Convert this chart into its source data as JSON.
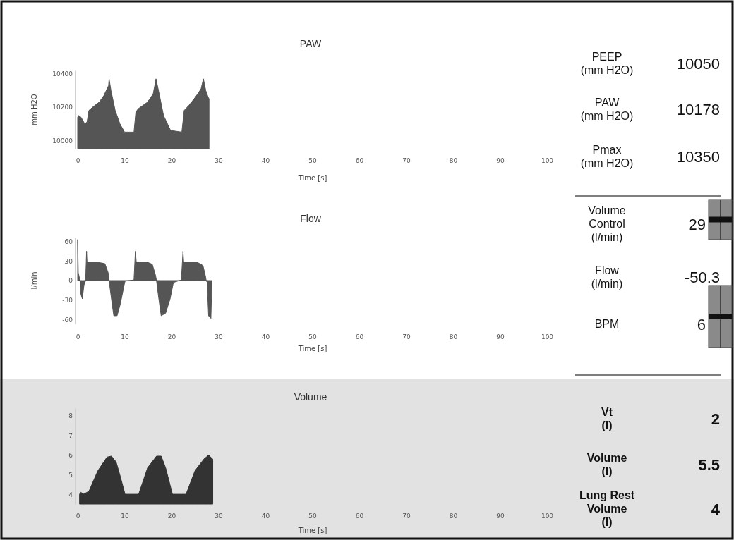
{
  "chart_data": [
    {
      "type": "area",
      "title": "PAW",
      "xlabel": "Time [s]",
      "ylabel": "mm H2O",
      "xlim": [
        0,
        100
      ],
      "xticks": [
        0,
        10,
        20,
        30,
        40,
        50,
        60,
        70,
        80,
        90,
        100
      ],
      "ylim": [
        9950,
        10420
      ],
      "yticks": [
        10000,
        10200,
        10400
      ],
      "grid": false,
      "series": [
        {
          "color": "#555555",
          "x": [
            0,
            0.24,
            0.7,
            1.5,
            2,
            2.4,
            3.2,
            4.6,
            5.6,
            6.6,
            6.7,
            7.1,
            8,
            9,
            10,
            12,
            12.4,
            12.9,
            14.9,
            16.1,
            16.7,
            17.3,
            18.3,
            19.8,
            22.2,
            22.7,
            23.7,
            25.1,
            26.3,
            26.8,
            27.3,
            27.8,
            28
          ],
          "values": [
            10140,
            10150,
            10140,
            10100,
            10110,
            10180,
            10200,
            10230,
            10270,
            10330,
            10370,
            10300,
            10180,
            10100,
            10050,
            10050,
            10170,
            10190,
            10230,
            10280,
            10370,
            10290,
            10150,
            10060,
            10050,
            10180,
            10210,
            10260,
            10310,
            10370,
            10300,
            10260,
            10250
          ]
        }
      ]
    },
    {
      "type": "area",
      "title": "Flow",
      "xlabel": "Time [s]",
      "ylabel": "l/min",
      "xlim": [
        0,
        100
      ],
      "xticks": [
        0,
        10,
        20,
        30,
        40,
        50,
        60,
        70,
        80,
        90,
        100
      ],
      "ylim": [
        -66,
        66
      ],
      "yticks": [
        -60,
        -30,
        0,
        30,
        60
      ],
      "grid": false,
      "series": [
        {
          "color": "#555555",
          "x": [
            0,
            0.14,
            0.5,
            0.7,
            1.0,
            1.35,
            1.7,
            1.9,
            2.0,
            4.3,
            5.8,
            6.5,
            6.7,
            7.2,
            7.7,
            8.4,
            9.1,
            9.9,
            10.1,
            12.0,
            12.3,
            12.5,
            14.9,
            15.9,
            16.6,
            16.8,
            17.3,
            17.8,
            18.75,
            19.7,
            20.4,
            22.1,
            22.45,
            22.6,
            25.5,
            26.7,
            27.2,
            27.4,
            27.6,
            27.9,
            28.4,
            28.6
          ],
          "values": [
            63,
            12,
            0,
            -21,
            -28,
            -7,
            0,
            45,
            28,
            28,
            26,
            12,
            0,
            -28,
            -54,
            -54,
            -36,
            -7,
            -1,
            1,
            45,
            28,
            28,
            25,
            8,
            0,
            -28,
            -54,
            -50,
            -28,
            -3,
            1,
            45,
            28,
            28,
            23,
            8,
            0,
            -3,
            -54,
            -58,
            -3
          ]
        }
      ]
    },
    {
      "type": "area",
      "title": "Volume",
      "xlabel": "Time [s]",
      "xlim": [
        0,
        100
      ],
      "xticks": [
        0,
        10,
        20,
        30,
        40,
        50,
        60,
        70,
        80,
        90,
        100
      ],
      "ylim": [
        3.5,
        8.4
      ],
      "yticks": [
        4,
        5,
        6,
        7,
        8
      ],
      "grid": false,
      "series": [
        {
          "color": "#333333",
          "x": [
            0.4,
            0.7,
            1.2,
            2.4,
            4.3,
            6.25,
            7.2,
            8.2,
            9.1,
            10.1,
            12.0,
            13.0,
            14.9,
            16.8,
            17.8,
            18.75,
            20.2,
            22.4,
            23.1,
            25.0,
            26.9,
            27.9,
            28.8
          ],
          "values": [
            4.0,
            4.1,
            4.0,
            4.15,
            5.2,
            5.9,
            5.95,
            5.65,
            4.9,
            4.0,
            4.0,
            4.0,
            5.35,
            5.95,
            5.95,
            5.35,
            4.0,
            4.0,
            4.0,
            5.2,
            5.8,
            6.0,
            5.8
          ]
        }
      ]
    },
    {
      "type": "other",
      "annotations": [
        "PEEP\n(mm H2O)",
        "10050",
        "PAW\n(mm H2O)",
        "10178",
        "Pmax\n(mm H2O)",
        "10350",
        "Volume\nControl\n(l/min)",
        "29",
        "Flow\n(l/min)",
        "-50.3",
        "BPM",
        "6",
        "Vt\n(l)",
        "2",
        "Volume\n(l)",
        "5.5",
        "Lung Rest\nVolume\n(l)",
        "4"
      ]
    }
  ]
}
